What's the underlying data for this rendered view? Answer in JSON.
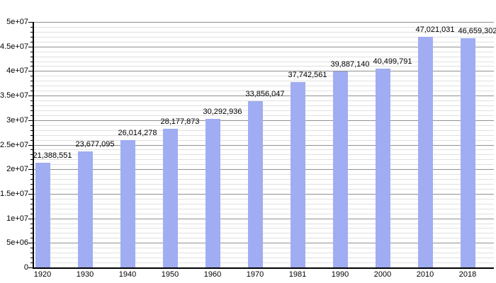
{
  "chart_data": {
    "type": "bar",
    "title": "",
    "xlabel": "",
    "ylabel": "",
    "categories": [
      "1920",
      "1930",
      "1940",
      "1950",
      "1960",
      "1970",
      "1981",
      "1990",
      "2000",
      "2010",
      "2018"
    ],
    "values": [
      21388551,
      23677095,
      26014278,
      28177873,
      30292936,
      33856047,
      37742561,
      39887140,
      40499791,
      47021031,
      46659302
    ],
    "value_labels": [
      "21,388,551",
      "23,677,095",
      "26,014,278",
      "28,177,873",
      "30,292,936",
      "33,856,047",
      "37,742,561",
      "39,887,140",
      "40,499,791",
      "47,021,031",
      "46,659,302"
    ],
    "y_axis": {
      "min": 0,
      "max": 50000000,
      "major_step": 5000000,
      "minor_step": 1000000,
      "tick_labels": [
        "0",
        "5e+06",
        "1e+07",
        "1.5e+07",
        "2e+07",
        "2.5e+07",
        "3e+07",
        "3.5e+07",
        "4e+07",
        "4.5e+07",
        "5e+07"
      ]
    },
    "grid": true,
    "legend": false,
    "colors": {
      "bar": "#a0adf2",
      "major_grid": "#909090",
      "minor_grid": "#e0e0e0",
      "axis": "#000000",
      "text": "#000000"
    }
  }
}
